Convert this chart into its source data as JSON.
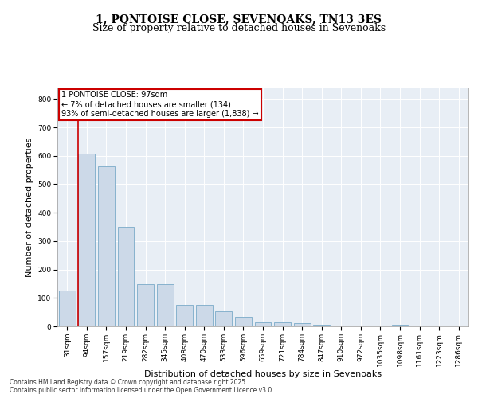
{
  "title1": "1, PONTOISE CLOSE, SEVENOAKS, TN13 3ES",
  "title2": "Size of property relative to detached houses in Sevenoaks",
  "xlabel": "Distribution of detached houses by size in Sevenoaks",
  "ylabel": "Number of detached properties",
  "categories": [
    "31sqm",
    "94sqm",
    "157sqm",
    "219sqm",
    "282sqm",
    "345sqm",
    "408sqm",
    "470sqm",
    "533sqm",
    "596sqm",
    "659sqm",
    "721sqm",
    "784sqm",
    "847sqm",
    "910sqm",
    "972sqm",
    "1035sqm",
    "1098sqm",
    "1161sqm",
    "1223sqm",
    "1286sqm"
  ],
  "values": [
    125,
    607,
    563,
    350,
    148,
    148,
    75,
    75,
    52,
    33,
    15,
    13,
    12,
    5,
    0,
    0,
    0,
    5,
    0,
    0,
    0
  ],
  "bar_color": "#ccd9e8",
  "bar_edge_color": "#7aaac8",
  "annotation_line1": "1 PONTOISE CLOSE: 97sqm",
  "annotation_line2": "← 7% of detached houses are smaller (134)",
  "annotation_line3": "93% of semi-detached houses are larger (1,838) →",
  "annotation_box_color": "#ffffff",
  "annotation_box_edge": "#cc0000",
  "vline_color": "#cc0000",
  "ylim": [
    0,
    840
  ],
  "yticks": [
    0,
    100,
    200,
    300,
    400,
    500,
    600,
    700,
    800
  ],
  "bg_color": "#e8eef5",
  "footer1": "Contains HM Land Registry data © Crown copyright and database right 2025.",
  "footer2": "Contains public sector information licensed under the Open Government Licence v3.0.",
  "title_fontsize": 10,
  "subtitle_fontsize": 9,
  "tick_fontsize": 6.5,
  "label_fontsize": 8,
  "annotation_fontsize": 7,
  "footer_fontsize": 5.5
}
